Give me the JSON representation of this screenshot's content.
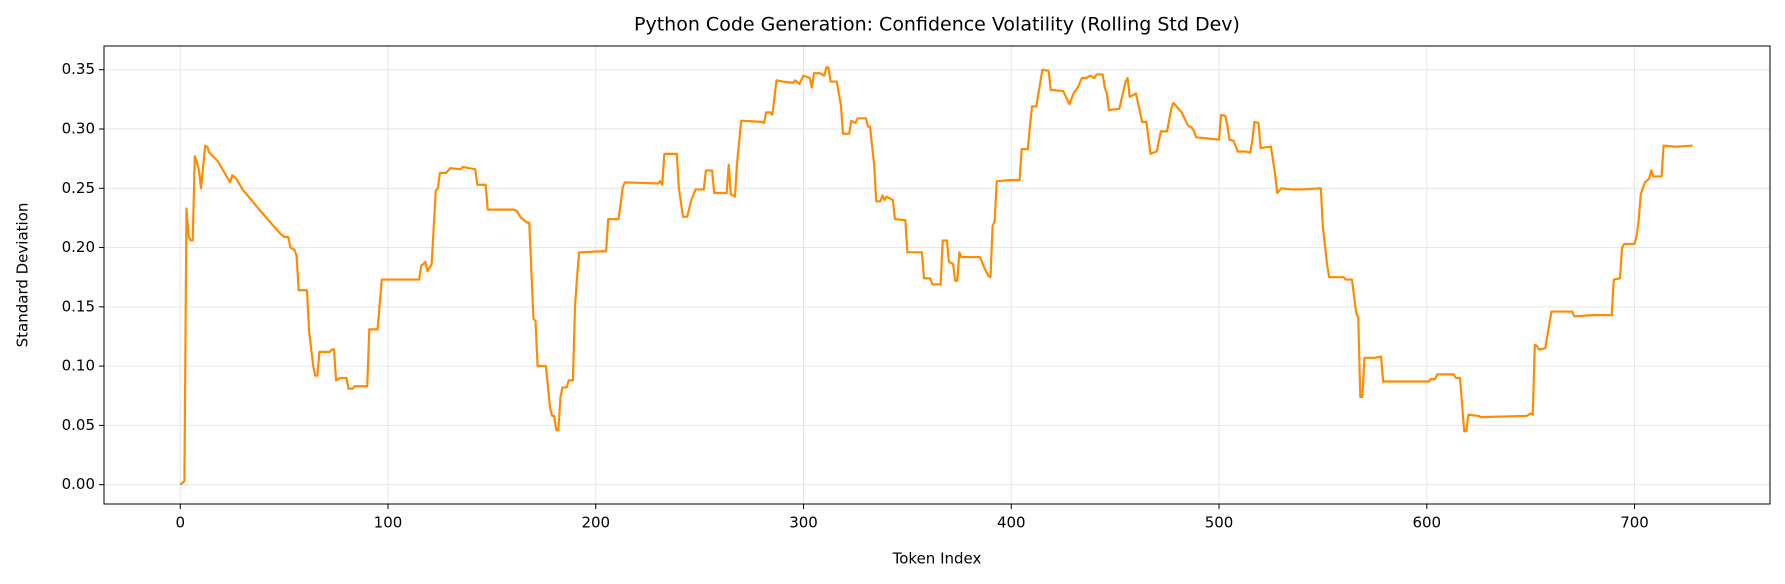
{
  "chart_data": {
    "type": "line",
    "title": "Python Code Generation: Confidence Volatility (Rolling Std Dev)",
    "xlabel": "Token Index",
    "ylabel": "Standard Deviation",
    "color": "#ff8c00",
    "grid": true,
    "xlim": [
      -36.7,
      765.2
    ],
    "ylim": [
      -0.0163,
      0.37
    ],
    "xticks": [
      0,
      100,
      200,
      300,
      400,
      500,
      600,
      700
    ],
    "yticks": [
      {
        "value": 0,
        "label": "0.00"
      },
      {
        "value": 0.05,
        "label": "0.05"
      },
      {
        "value": 0.1,
        "label": "0.10"
      },
      {
        "value": 0.15,
        "label": "0.15"
      },
      {
        "value": 0.2,
        "label": "0.20"
      },
      {
        "value": 0.25,
        "label": "0.25"
      },
      {
        "value": 0.3,
        "label": "0.30"
      },
      {
        "value": 0.35,
        "label": "0.35"
      }
    ],
    "x": [
      0,
      2,
      3,
      4,
      5,
      6,
      7,
      8,
      9,
      10,
      12,
      13,
      14,
      18,
      24,
      25,
      27,
      30,
      40,
      48,
      50,
      52,
      53,
      55,
      56,
      57,
      61,
      62,
      64,
      65,
      66,
      67,
      72,
      73,
      74,
      75,
      77,
      80,
      81,
      83,
      84,
      90,
      91,
      95,
      97,
      105,
      115,
      116,
      117,
      118,
      119,
      121,
      123,
      124,
      125,
      128,
      130,
      135,
      136,
      142,
      143,
      147,
      148,
      160,
      162,
      164,
      167,
      168,
      170,
      171,
      172,
      176,
      178,
      179,
      180,
      181,
      182,
      183,
      184,
      186,
      187,
      189,
      190,
      191,
      192,
      205,
      206,
      211,
      213,
      214,
      230,
      231,
      232,
      233,
      239,
      240,
      242,
      244,
      246,
      248,
      252,
      253,
      256,
      257,
      263,
      264,
      265,
      267,
      268,
      270,
      280,
      281,
      282,
      284,
      285,
      287,
      290,
      295,
      296,
      298,
      300,
      303,
      304,
      305,
      308,
      310,
      311,
      312,
      313,
      316,
      318,
      319,
      322,
      323,
      325,
      326,
      330,
      331,
      332,
      334,
      335,
      337,
      338,
      339,
      340,
      343,
      344,
      349,
      350,
      357,
      358,
      361,
      362,
      366,
      367,
      369,
      370,
      372,
      373,
      374,
      375,
      376,
      385,
      387,
      389,
      390,
      391,
      392,
      393,
      400,
      404,
      405,
      408,
      409,
      410,
      412,
      415,
      418,
      419,
      425,
      428,
      430,
      432,
      434,
      436,
      438,
      440,
      441,
      444,
      445,
      446,
      447,
      452,
      455,
      456,
      457,
      460,
      463,
      465,
      467,
      470,
      472,
      475,
      477,
      478,
      480,
      482,
      485,
      487,
      488,
      489,
      495,
      500,
      501,
      503,
      504,
      505,
      507,
      509,
      513,
      515,
      516,
      517,
      519,
      520,
      525,
      527,
      528,
      530,
      535,
      540,
      549,
      550,
      552,
      553,
      560,
      561,
      564,
      566,
      567,
      568,
      569,
      570,
      575,
      578,
      579,
      595,
      601,
      602,
      604,
      605,
      613,
      614,
      616,
      618,
      619,
      620,
      625,
      626,
      648,
      650,
      651,
      652,
      653,
      654,
      657,
      660,
      670,
      671,
      680,
      689,
      690,
      693,
      694,
      695,
      700,
      701,
      702,
      703,
      705,
      707,
      708,
      709,
      713,
      714,
      720,
      728
    ],
    "values": [
      0.0,
      0.003,
      0.233,
      0.21,
      0.206,
      0.206,
      0.277,
      0.272,
      0.265,
      0.25,
      0.286,
      0.285,
      0.28,
      0.273,
      0.255,
      0.261,
      0.258,
      0.249,
      0.228,
      0.212,
      0.209,
      0.209,
      0.2,
      0.198,
      0.193,
      0.164,
      0.164,
      0.13,
      0.1,
      0.092,
      0.092,
      0.112,
      0.112,
      0.114,
      0.114,
      0.088,
      0.09,
      0.09,
      0.081,
      0.081,
      0.083,
      0.083,
      0.131,
      0.131,
      0.173,
      0.173,
      0.173,
      0.185,
      0.186,
      0.188,
      0.18,
      0.186,
      0.248,
      0.25,
      0.263,
      0.263,
      0.267,
      0.266,
      0.268,
      0.266,
      0.253,
      0.253,
      0.232,
      0.232,
      0.231,
      0.225,
      0.221,
      0.221,
      0.14,
      0.138,
      0.1,
      0.1,
      0.065,
      0.058,
      0.058,
      0.046,
      0.046,
      0.074,
      0.082,
      0.082,
      0.088,
      0.088,
      0.15,
      0.175,
      0.196,
      0.197,
      0.224,
      0.224,
      0.251,
      0.255,
      0.254,
      0.256,
      0.253,
      0.279,
      0.279,
      0.25,
      0.226,
      0.226,
      0.24,
      0.249,
      0.249,
      0.265,
      0.265,
      0.246,
      0.246,
      0.27,
      0.245,
      0.243,
      0.271,
      0.307,
      0.306,
      0.305,
      0.314,
      0.314,
      0.312,
      0.341,
      0.34,
      0.339,
      0.341,
      0.338,
      0.345,
      0.343,
      0.335,
      0.347,
      0.347,
      0.345,
      0.352,
      0.352,
      0.34,
      0.34,
      0.32,
      0.296,
      0.296,
      0.307,
      0.305,
      0.309,
      0.309,
      0.302,
      0.302,
      0.27,
      0.239,
      0.239,
      0.244,
      0.24,
      0.243,
      0.24,
      0.224,
      0.223,
      0.196,
      0.196,
      0.174,
      0.174,
      0.169,
      0.169,
      0.206,
      0.206,
      0.188,
      0.186,
      0.172,
      0.172,
      0.196,
      0.192,
      0.192,
      0.183,
      0.176,
      0.175,
      0.218,
      0.222,
      0.256,
      0.257,
      0.257,
      0.283,
      0.283,
      0.303,
      0.319,
      0.319,
      0.35,
      0.349,
      0.333,
      0.332,
      0.321,
      0.33,
      0.335,
      0.343,
      0.343,
      0.345,
      0.343,
      0.346,
      0.346,
      0.335,
      0.33,
      0.316,
      0.317,
      0.34,
      0.343,
      0.327,
      0.33,
      0.306,
      0.306,
      0.279,
      0.281,
      0.298,
      0.298,
      0.317,
      0.322,
      0.318,
      0.314,
      0.303,
      0.301,
      0.298,
      0.293,
      0.292,
      0.291,
      0.312,
      0.311,
      0.303,
      0.291,
      0.29,
      0.281,
      0.281,
      0.28,
      0.29,
      0.306,
      0.305,
      0.284,
      0.285,
      0.262,
      0.246,
      0.25,
      0.249,
      0.249,
      0.25,
      0.217,
      0.186,
      0.175,
      0.175,
      0.173,
      0.173,
      0.145,
      0.141,
      0.074,
      0.074,
      0.107,
      0.107,
      0.108,
      0.087,
      0.087,
      0.087,
      0.089,
      0.089,
      0.093,
      0.093,
      0.09,
      0.09,
      0.045,
      0.045,
      0.059,
      0.058,
      0.057,
      0.058,
      0.06,
      0.059,
      0.118,
      0.117,
      0.114,
      0.115,
      0.146,
      0.146,
      0.142,
      0.143,
      0.143,
      0.173,
      0.174,
      0.2,
      0.203,
      0.203,
      0.21,
      0.223,
      0.245,
      0.255,
      0.258,
      0.265,
      0.26,
      0.26,
      0.286,
      0.285,
      0.286
    ]
  }
}
